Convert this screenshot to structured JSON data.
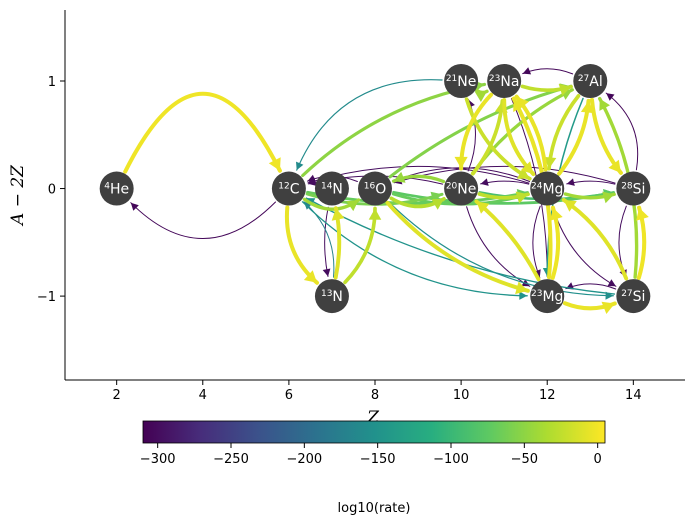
{
  "diagram": {
    "xlabel": "Z",
    "ylabel": "A − 2Z",
    "x_ticks": [
      2,
      4,
      6,
      8,
      10,
      12,
      14
    ],
    "y_ticks": [
      -1,
      0,
      1
    ],
    "x_range": [
      0.8,
      15.2
    ],
    "y_range": [
      -1.78,
      1.66
    ],
    "nodes": [
      {
        "id": "he4",
        "mass": "4",
        "symbol": "He",
        "z": 2,
        "n": 0
      },
      {
        "id": "c12",
        "mass": "12",
        "symbol": "C",
        "z": 6,
        "n": 0
      },
      {
        "id": "n13",
        "mass": "13",
        "symbol": "N",
        "z": 7,
        "n": -1
      },
      {
        "id": "n14",
        "mass": "14",
        "symbol": "N",
        "z": 7,
        "n": 0
      },
      {
        "id": "o16",
        "mass": "16",
        "symbol": "O",
        "z": 8,
        "n": 0
      },
      {
        "id": "ne20",
        "mass": "20",
        "symbol": "Ne",
        "z": 10,
        "n": 0
      },
      {
        "id": "ne21",
        "mass": "21",
        "symbol": "Ne",
        "z": 10,
        "n": 1
      },
      {
        "id": "na23",
        "mass": "23",
        "symbol": "Na",
        "z": 11,
        "n": 1
      },
      {
        "id": "mg23",
        "mass": "23",
        "symbol": "Mg",
        "z": 12,
        "n": -1
      },
      {
        "id": "mg24",
        "mass": "24",
        "symbol": "Mg",
        "z": 12,
        "n": 0
      },
      {
        "id": "al27",
        "mass": "27",
        "symbol": "Al",
        "z": 13,
        "n": 1
      },
      {
        "id": "si27",
        "mass": "27",
        "symbol": "Si",
        "z": 14,
        "n": -1
      },
      {
        "id": "si28",
        "mass": "28",
        "symbol": "Si",
        "z": 14,
        "n": 0
      }
    ],
    "links": [
      {
        "from": "he4",
        "to": "c12",
        "rate": -2,
        "curve": -1.0
      },
      {
        "from": "c12",
        "to": "he4",
        "rate": -305,
        "curve": -0.5
      },
      {
        "from": "c12",
        "to": "n13",
        "rate": -5,
        "curve": 0.25
      },
      {
        "from": "n13",
        "to": "c12",
        "rate": -170,
        "curve": 0.25
      },
      {
        "from": "n13",
        "to": "n14",
        "rate": -10,
        "curve": 0.1
      },
      {
        "from": "n14",
        "to": "n13",
        "rate": -300,
        "curve": 0.1
      },
      {
        "from": "n13",
        "to": "o16",
        "rate": -25,
        "curve": 0.2
      },
      {
        "from": "c12",
        "to": "o16",
        "rate": -40,
        "curve": 0.35
      },
      {
        "from": "o16",
        "to": "c12",
        "rate": -300,
        "curve": 0.2
      },
      {
        "from": "c12",
        "to": "ne20",
        "rate": -60,
        "curve": 0.15
      },
      {
        "from": "ne20",
        "to": "c12",
        "rate": -300,
        "curve": 0.12
      },
      {
        "from": "c12",
        "to": "na23",
        "rate": -50,
        "curve": -0.15
      },
      {
        "from": "ne21",
        "to": "c12",
        "rate": -160,
        "curve": 0.35
      },
      {
        "from": "c12",
        "to": "mg23",
        "rate": -150,
        "curve": 0.2
      },
      {
        "from": "c12",
        "to": "mg24",
        "rate": -70,
        "curve": 0.1
      },
      {
        "from": "mg24",
        "to": "c12",
        "rate": -300,
        "curve": 0.15
      },
      {
        "from": "o16",
        "to": "ne20",
        "rate": -30,
        "curve": 0.3
      },
      {
        "from": "ne20",
        "to": "o16",
        "rate": -45,
        "curve": 0.2
      },
      {
        "from": "o16",
        "to": "mg24",
        "rate": -70,
        "curve": 0.15
      },
      {
        "from": "mg24",
        "to": "o16",
        "rate": -300,
        "curve": 0.2
      },
      {
        "from": "o16",
        "to": "mg23",
        "rate": -10,
        "curve": 0.15
      },
      {
        "from": "o16",
        "to": "si27",
        "rate": -155,
        "curve": 0.2
      },
      {
        "from": "o16",
        "to": "si28",
        "rate": -75,
        "curve": 0.1
      },
      {
        "from": "si28",
        "to": "o16",
        "rate": -300,
        "curve": 0.15
      },
      {
        "from": "o16",
        "to": "al27",
        "rate": -55,
        "curve": -0.1
      },
      {
        "from": "ne20",
        "to": "ne21",
        "rate": -300,
        "curve": 0.2
      },
      {
        "from": "ne20",
        "to": "na23",
        "rate": -20,
        "curve": 0.15
      },
      {
        "from": "ne20",
        "to": "mg24",
        "rate": -25,
        "curve": 0.15
      },
      {
        "from": "mg24",
        "to": "ne20",
        "rate": -300,
        "curve": 0.12
      },
      {
        "from": "ne20",
        "to": "mg23",
        "rate": -300,
        "curve": 0.2
      },
      {
        "from": "ne20",
        "to": "si28",
        "rate": -90,
        "curve": 0.1
      },
      {
        "from": "ne20",
        "to": "al27",
        "rate": -45,
        "curve": -0.12
      },
      {
        "from": "ne21",
        "to": "na23",
        "rate": -40,
        "curve": 0.3
      },
      {
        "from": "ne21",
        "to": "mg24",
        "rate": -20,
        "curve": 0.2
      },
      {
        "from": "na23",
        "to": "ne20",
        "rate": -5,
        "curve": 0.2
      },
      {
        "from": "na23",
        "to": "mg24",
        "rate": -10,
        "curve": 0.2
      },
      {
        "from": "mg24",
        "to": "na23",
        "rate": -5,
        "curve": 0.15
      },
      {
        "from": "na23",
        "to": "al27",
        "rate": -25,
        "curve": 0.15
      },
      {
        "from": "al27",
        "to": "na23",
        "rate": -305,
        "curve": 0.2
      },
      {
        "from": "na23",
        "to": "mg23",
        "rate": -300,
        "curve": -0.1
      },
      {
        "from": "mg23",
        "to": "na23",
        "rate": -5,
        "curve": 0.15
      },
      {
        "from": "mg23",
        "to": "ne20",
        "rate": -10,
        "curve": 0.1
      },
      {
        "from": "mg23",
        "to": "mg24",
        "rate": -3,
        "curve": 0.15
      },
      {
        "from": "mg24",
        "to": "mg23",
        "rate": -300,
        "curve": 0.2
      },
      {
        "from": "mg23",
        "to": "si27",
        "rate": -5,
        "curve": 0.2
      },
      {
        "from": "si27",
        "to": "mg23",
        "rate": -300,
        "curve": 0.2
      },
      {
        "from": "mg24",
        "to": "al27",
        "rate": -5,
        "curve": 0.15
      },
      {
        "from": "al27",
        "to": "mg24",
        "rate": -20,
        "curve": 0.15
      },
      {
        "from": "mg24",
        "to": "si28",
        "rate": -40,
        "curve": 0.15
      },
      {
        "from": "si28",
        "to": "mg24",
        "rate": -300,
        "curve": 0.12
      },
      {
        "from": "mg24",
        "to": "si27",
        "rate": -300,
        "curve": 0.2
      },
      {
        "from": "al27",
        "to": "si28",
        "rate": -5,
        "curve": 0.15
      },
      {
        "from": "si28",
        "to": "al27",
        "rate": -305,
        "curve": 0.3
      },
      {
        "from": "al27",
        "to": "mg23",
        "rate": -140,
        "curve": 0.1
      },
      {
        "from": "si27",
        "to": "si28",
        "rate": -2,
        "curve": 0.15
      },
      {
        "from": "si28",
        "to": "si27",
        "rate": -300,
        "curve": 0.2
      },
      {
        "from": "si27",
        "to": "mg24",
        "rate": -10,
        "curve": 0.15
      },
      {
        "from": "si27",
        "to": "al27",
        "rate": -40,
        "curve": 0.15
      },
      {
        "from": "si27",
        "to": "c12",
        "rate": -150,
        "curve": -0.1
      }
    ]
  },
  "colorbar": {
    "label": "log10(rate)",
    "range": [
      -310,
      5
    ],
    "ticks": [
      -300,
      -250,
      -200,
      -150,
      -100,
      -50,
      0
    ],
    "tick_labels": [
      "−300",
      "−250",
      "−200",
      "−150",
      "−100",
      "−50",
      "0"
    ]
  }
}
